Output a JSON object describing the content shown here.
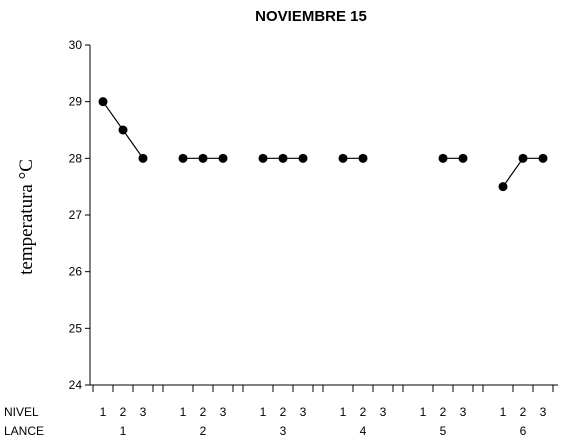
{
  "chart_data": {
    "type": "line",
    "title": "NOVIEMBRE 15",
    "ylabel": "temperatura °C",
    "xlabel": "",
    "ylim": [
      24,
      30
    ],
    "yticks": [
      24,
      25,
      26,
      27,
      28,
      29,
      30
    ],
    "row_labels": [
      "NIVEL",
      "LANCE"
    ],
    "groups": [
      {
        "lance": "1",
        "levels": [
          "1",
          "2",
          "3"
        ],
        "values": [
          29,
          28.5,
          28
        ]
      },
      {
        "lance": "2",
        "levels": [
          "1",
          "2",
          "3"
        ],
        "values": [
          28,
          28,
          28
        ]
      },
      {
        "lance": "3",
        "levels": [
          "1",
          "2",
          "3"
        ],
        "values": [
          28,
          28,
          28
        ]
      },
      {
        "lance": "4",
        "levels": [
          "1",
          "2",
          "3"
        ],
        "values": [
          28,
          28,
          null
        ]
      },
      {
        "lance": "5",
        "levels": [
          "1",
          "2",
          "3"
        ],
        "values": [
          null,
          28,
          28
        ]
      },
      {
        "lance": "6",
        "levels": [
          "1",
          "2",
          "3"
        ],
        "values": [
          27.5,
          28,
          28
        ]
      }
    ],
    "grid": false,
    "marker": "filled-circle",
    "line_color": "#000000"
  }
}
